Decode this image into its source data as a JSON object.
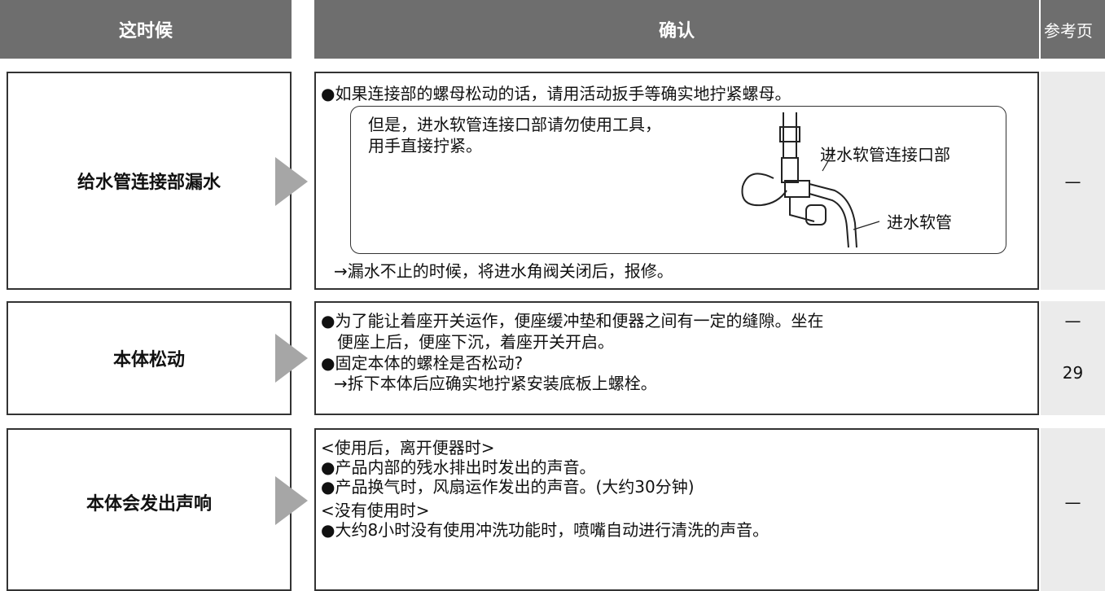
{
  "header": {
    "situation": "这时候",
    "check": "确认",
    "reference": "参考页"
  },
  "rows": [
    {
      "situation": "给水管连接部漏水",
      "lines": [
        "●如果连接部的螺母松动的话，请用活动扳手等确实地拧紧螺母。"
      ],
      "note": [
        "但是，进水软管连接口部请勿使用工具，",
        "用手直接拧紧。"
      ],
      "labels": [
        "进水软管连接口部",
        "进水软管"
      ],
      "after": "→漏水不止的时候，将进水角阀关闭后，报修。",
      "refs": [
        "—"
      ]
    },
    {
      "situation": "本体松动",
      "lines": [
        "●为了能让着座开关运作，便座缓冲垫和便器之间有一定的缝隙。坐在",
        "便座上后，便座下沉，着座开关开启。",
        "●固定本体的螺栓是否松动?",
        "→拆下本体后应确实地拧紧安装底板上螺栓。"
      ],
      "refs": [
        "—",
        29
      ]
    },
    {
      "situation": "本体会发出声响",
      "lines": [
        "<使用后，离开便器时>",
        "●产品内部的残水排出时发出的声音。",
        "●产品换气时，风扇运作发出的声音。(大约30分钟)",
        "<没有使用时>",
        "●大约8小时没有使用冲洗功能时，喷嘴自动进行清洗的声音。"
      ],
      "refs": [
        "—"
      ]
    }
  ]
}
